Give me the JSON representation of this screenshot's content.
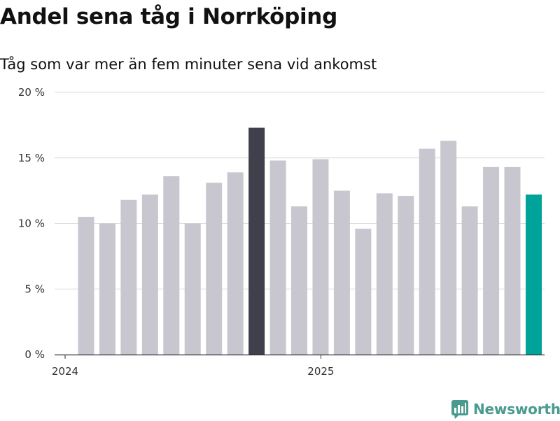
{
  "title": "Andel sena tåg i Norrköping",
  "subtitle": "Tåg som var mer än fem minuter sena vid ankomst",
  "brand": "Newsworthy",
  "colors": {
    "bar_default": "#c8c7cf",
    "bar_highlight": "#403f4c",
    "bar_latest": "#00a39a",
    "grid": "#dcdcdc",
    "axis": "#333333"
  },
  "chart_data": {
    "type": "bar",
    "title": "Andel sena tåg i Norrköping",
    "subtitle": "Tåg som var mer än fem minuter sena vid ankomst",
    "x": [
      "2024-01",
      "2024-02",
      "2024-03",
      "2024-04",
      "2024-05",
      "2024-06",
      "2024-07",
      "2024-08",
      "2024-09",
      "2024-10",
      "2024-11",
      "2024-12",
      "2025-01",
      "2025-02",
      "2025-03",
      "2025-04",
      "2025-05",
      "2025-06",
      "2025-07",
      "2025-08",
      "2025-09",
      "2025-10"
    ],
    "values": [
      10.5,
      10.0,
      11.8,
      12.2,
      13.6,
      10.0,
      13.1,
      13.9,
      17.3,
      14.8,
      11.3,
      14.9,
      12.5,
      9.6,
      12.3,
      12.1,
      15.7,
      16.3,
      11.3,
      14.3,
      14.3,
      12.2
    ],
    "highlight": {
      "2024-09": "bar_highlight",
      "2025-10": "bar_latest"
    },
    "y_ticks": [
      "0 %",
      "5 %",
      "10 %",
      "15 %",
      "20 %"
    ],
    "ylim": [
      0,
      20
    ],
    "x_ticks": [
      {
        "x": "2024-01",
        "label": "2024"
      },
      {
        "x": "2025-01",
        "label": "2025"
      }
    ],
    "grid": true,
    "legend": "none"
  }
}
